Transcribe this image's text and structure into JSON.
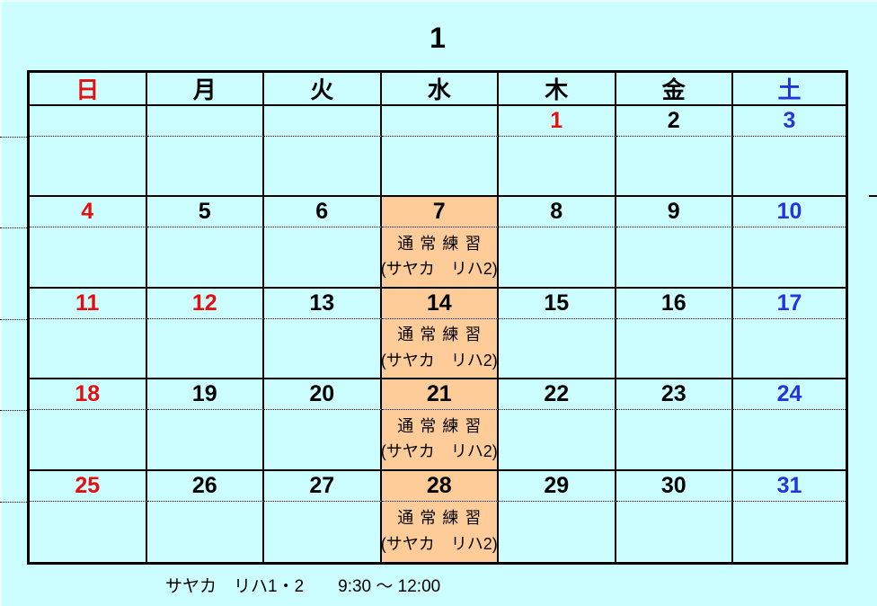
{
  "title": "1",
  "weekday_header": [
    {
      "label": "日",
      "color": "red"
    },
    {
      "label": "月",
      "color": "black"
    },
    {
      "label": "火",
      "color": "black"
    },
    {
      "label": "水",
      "color": "black"
    },
    {
      "label": "木",
      "color": "black"
    },
    {
      "label": "金",
      "color": "black"
    },
    {
      "label": "土",
      "color": "blue"
    }
  ],
  "event_text": {
    "line1": "通常練習",
    "line2": "(サヤカ　リハ2)"
  },
  "weeks": [
    {
      "days": [
        {
          "date": "",
          "color": "black",
          "highlighted": false,
          "has_event": false
        },
        {
          "date": "",
          "color": "black",
          "highlighted": false,
          "has_event": false
        },
        {
          "date": "",
          "color": "black",
          "highlighted": false,
          "has_event": false
        },
        {
          "date": "",
          "color": "black",
          "highlighted": false,
          "has_event": false
        },
        {
          "date": "1",
          "color": "red",
          "highlighted": false,
          "has_event": false
        },
        {
          "date": "2",
          "color": "black",
          "highlighted": false,
          "has_event": false
        },
        {
          "date": "3",
          "color": "blue",
          "highlighted": false,
          "has_event": false
        }
      ]
    },
    {
      "days": [
        {
          "date": "4",
          "color": "red",
          "highlighted": false,
          "has_event": false
        },
        {
          "date": "5",
          "color": "black",
          "highlighted": false,
          "has_event": false
        },
        {
          "date": "6",
          "color": "black",
          "highlighted": false,
          "has_event": false
        },
        {
          "date": "7",
          "color": "black",
          "highlighted": true,
          "has_event": true
        },
        {
          "date": "8",
          "color": "black",
          "highlighted": false,
          "has_event": false
        },
        {
          "date": "9",
          "color": "black",
          "highlighted": false,
          "has_event": false
        },
        {
          "date": "10",
          "color": "blue",
          "highlighted": false,
          "has_event": false
        }
      ]
    },
    {
      "days": [
        {
          "date": "11",
          "color": "red",
          "highlighted": false,
          "has_event": false
        },
        {
          "date": "12",
          "color": "red",
          "highlighted": false,
          "has_event": false
        },
        {
          "date": "13",
          "color": "black",
          "highlighted": false,
          "has_event": false
        },
        {
          "date": "14",
          "color": "black",
          "highlighted": true,
          "has_event": true
        },
        {
          "date": "15",
          "color": "black",
          "highlighted": false,
          "has_event": false
        },
        {
          "date": "16",
          "color": "black",
          "highlighted": false,
          "has_event": false
        },
        {
          "date": "17",
          "color": "blue",
          "highlighted": false,
          "has_event": false
        }
      ]
    },
    {
      "days": [
        {
          "date": "18",
          "color": "red",
          "highlighted": false,
          "has_event": false
        },
        {
          "date": "19",
          "color": "black",
          "highlighted": false,
          "has_event": false
        },
        {
          "date": "20",
          "color": "black",
          "highlighted": false,
          "has_event": false
        },
        {
          "date": "21",
          "color": "black",
          "highlighted": true,
          "has_event": true
        },
        {
          "date": "22",
          "color": "black",
          "highlighted": false,
          "has_event": false
        },
        {
          "date": "23",
          "color": "black",
          "highlighted": false,
          "has_event": false
        },
        {
          "date": "24",
          "color": "blue",
          "highlighted": false,
          "has_event": false
        }
      ]
    },
    {
      "days": [
        {
          "date": "25",
          "color": "red",
          "highlighted": false,
          "has_event": false
        },
        {
          "date": "26",
          "color": "black",
          "highlighted": false,
          "has_event": false
        },
        {
          "date": "27",
          "color": "black",
          "highlighted": false,
          "has_event": false
        },
        {
          "date": "28",
          "color": "black",
          "highlighted": true,
          "has_event": true
        },
        {
          "date": "29",
          "color": "black",
          "highlighted": false,
          "has_event": false
        },
        {
          "date": "30",
          "color": "black",
          "highlighted": false,
          "has_event": false
        },
        {
          "date": "31",
          "color": "blue",
          "highlighted": false,
          "has_event": false
        }
      ]
    }
  ],
  "footnote": "サヤカ　リハ1・2　　9:30 〜 12:00",
  "colors": {
    "background": "#ccfeff",
    "highlight": "#fdcc99",
    "red": "#e60f0f",
    "blue": "#2433dd",
    "black": "#000000",
    "border": "#000000"
  }
}
